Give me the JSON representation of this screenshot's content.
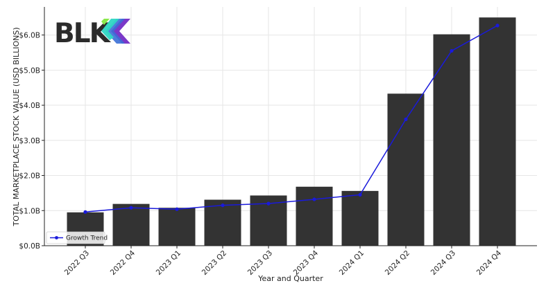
{
  "logo": {
    "text": "BLK"
  },
  "chart_data": {
    "type": "bar",
    "title": "",
    "xlabel": "Year and Quarter",
    "ylabel": "TOTAL MARKETPLACE STOCK VALUE (USD BILLIONS)",
    "categories": [
      "2022 Q3",
      "2022 Q4",
      "2023 Q1",
      "2023 Q2",
      "2023 Q3",
      "2023 Q4",
      "2024 Q1",
      "2024 Q2",
      "2024 Q3",
      "2024 Q4"
    ],
    "series": [
      {
        "values": [
          0.95,
          1.19,
          1.08,
          1.31,
          1.43,
          1.68,
          1.56,
          4.33,
          6.02,
          6.5
        ],
        "color": "#333333"
      },
      {
        "name": "Growth Trend",
        "type": "line",
        "values": [
          0.96,
          1.08,
          1.04,
          1.15,
          1.2,
          1.32,
          1.45,
          3.6,
          5.55,
          6.27
        ],
        "color": "#1a1adb"
      }
    ],
    "ylim": [
      0,
      6.8
    ],
    "yticks": [
      0,
      1,
      2,
      3,
      4,
      5,
      6
    ],
    "ytick_labels": [
      "$0.0B",
      "$1.0B",
      "$2.0B",
      "$3.0B",
      "$4.0B",
      "$5.0B",
      "$6.0B"
    ],
    "grid": true,
    "legend": {
      "position": "lower-left",
      "entries": [
        "Growth Trend"
      ]
    }
  }
}
